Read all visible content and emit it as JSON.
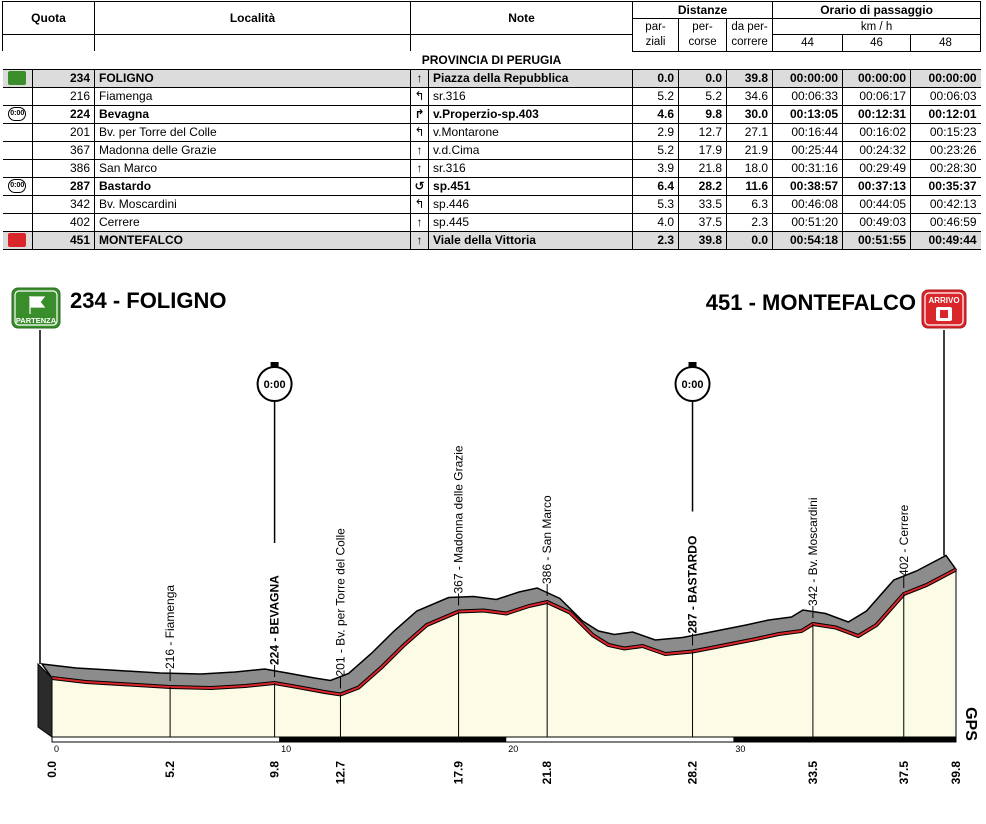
{
  "table": {
    "headers": {
      "quota": "Quota",
      "localita": "Località",
      "note": "Note",
      "distanze": "Distanze",
      "orario": "Orario di passaggio",
      "parziali": "par-\nziali",
      "percorse": "per-\ncorse",
      "da_percorrere": "da per-\ncorrere",
      "kmh": "km / h",
      "speeds": [
        "44",
        "46",
        "48"
      ]
    },
    "province": "PROVINCIA DI PERUGIA",
    "rows": [
      {
        "icon": "start-icon",
        "quota": "234",
        "loc": "FOLIGNO",
        "dir": "↑",
        "note": "Piazza della Repubblica",
        "parz": "0.0",
        "perc": "0.0",
        "da": "39.8",
        "t44": "00:00:00",
        "t46": "00:00:00",
        "t48": "00:00:00",
        "style": "hl"
      },
      {
        "icon": "",
        "quota": "216",
        "loc": "Fiamenga",
        "dir": "↰",
        "note": "sr.316",
        "parz": "5.2",
        "perc": "5.2",
        "da": "34.6",
        "t44": "00:06:33",
        "t46": "00:06:17",
        "t48": "00:06:03",
        "style": ""
      },
      {
        "icon": "clock-icon",
        "quota": "224",
        "loc": "Bevagna",
        "dir": "↱",
        "note": "v.Properzio-sp.403",
        "parz": "4.6",
        "perc": "9.8",
        "da": "30.0",
        "t44": "00:13:05",
        "t46": "00:12:31",
        "t48": "00:12:01",
        "style": "bold"
      },
      {
        "icon": "",
        "quota": "201",
        "loc": "Bv. per Torre del Colle",
        "dir": "↰",
        "note": "v.Montarone",
        "parz": "2.9",
        "perc": "12.7",
        "da": "27.1",
        "t44": "00:16:44",
        "t46": "00:16:02",
        "t48": "00:15:23",
        "style": ""
      },
      {
        "icon": "",
        "quota": "367",
        "loc": "Madonna delle Grazie",
        "dir": "↑",
        "note": "v.d.Cima",
        "parz": "5.2",
        "perc": "17.9",
        "da": "21.9",
        "t44": "00:25:44",
        "t46": "00:24:32",
        "t48": "00:23:26",
        "style": ""
      },
      {
        "icon": "",
        "quota": "386",
        "loc": "San Marco",
        "dir": "↑",
        "note": "sr.316",
        "parz": "3.9",
        "perc": "21.8",
        "da": "18.0",
        "t44": "00:31:16",
        "t46": "00:29:49",
        "t48": "00:28:30",
        "style": ""
      },
      {
        "icon": "clock-icon",
        "quota": "287",
        "loc": "Bastardo",
        "dir": "↺",
        "note": "sp.451",
        "parz": "6.4",
        "perc": "28.2",
        "da": "11.6",
        "t44": "00:38:57",
        "t46": "00:37:13",
        "t48": "00:35:37",
        "style": "bold"
      },
      {
        "icon": "",
        "quota": "342",
        "loc": "Bv. Moscardini",
        "dir": "↰",
        "note": "sp.446",
        "parz": "5.3",
        "perc": "33.5",
        "da": "6.3",
        "t44": "00:46:08",
        "t46": "00:44:05",
        "t48": "00:42:13",
        "style": ""
      },
      {
        "icon": "",
        "quota": "402",
        "loc": "Cerrere",
        "dir": "↑",
        "note": "sp.445",
        "parz": "4.0",
        "perc": "37.5",
        "da": "2.3",
        "t44": "00:51:20",
        "t46": "00:49:03",
        "t48": "00:46:59",
        "style": ""
      },
      {
        "icon": "finish-icon",
        "quota": "451",
        "loc": "MONTEFALCO",
        "dir": "↑",
        "note": "Viale della Vittoria",
        "parz": "2.3",
        "perc": "39.8",
        "da": "0.0",
        "t44": "00:54:18",
        "t46": "00:51:55",
        "t48": "00:49:44",
        "style": "hl"
      }
    ]
  },
  "profile": {
    "start_title": "234 - FOLIGNO",
    "finish_title": "451 - MONTEFALCO",
    "start_badge": "PARTENZA",
    "finish_badge": "ARRIVO",
    "clock_text": "0:00",
    "side_text": "GPS",
    "colors": {
      "start": "#3a8d2b",
      "finish": "#d9262b",
      "road": "#d9262b",
      "fill": "#fbfbe6",
      "band": "#8c8c8c"
    }
  },
  "chart_data": {
    "type": "area",
    "title": "",
    "xlabel": "",
    "ylabel": "",
    "xlim": [
      0,
      39.8
    ],
    "x_ticks": [
      0,
      10,
      20,
      30
    ],
    "bottom_labels": [
      "0.0",
      "5.2",
      "9.8",
      "12.7",
      "17.9",
      "21.8",
      "28.2",
      "33.5",
      "37.5",
      "39.8"
    ],
    "points": [
      {
        "km": 0.0,
        "label": "",
        "bold": true
      },
      {
        "km": 5.2,
        "label": "216 - Fiamenga",
        "bold": false
      },
      {
        "km": 9.8,
        "label": "224 - BEVAGNA",
        "bold": true,
        "clock": true
      },
      {
        "km": 12.7,
        "label": "201 - Bv. per Torre del Colle",
        "bold": false
      },
      {
        "km": 17.9,
        "label": "367 - Madonna delle Grazie",
        "bold": false
      },
      {
        "km": 21.8,
        "label": "386 - San Marco",
        "bold": false
      },
      {
        "km": 28.2,
        "label": "287 - BASTARDO",
        "bold": true,
        "clock": true
      },
      {
        "km": 33.5,
        "label": "342 - Bv. Moscardini",
        "bold": false
      },
      {
        "km": 37.5,
        "label": "402 - Cerrere",
        "bold": false
      },
      {
        "km": 39.8,
        "label": "",
        "bold": true
      }
    ],
    "profile": [
      [
        0,
        234
      ],
      [
        1.5,
        226
      ],
      [
        3,
        222
      ],
      [
        5.2,
        216
      ],
      [
        7,
        214
      ],
      [
        8.5,
        218
      ],
      [
        9.8,
        224
      ],
      [
        10.8,
        216
      ],
      [
        12,
        206
      ],
      [
        12.7,
        201
      ],
      [
        13.5,
        215
      ],
      [
        14.5,
        255
      ],
      [
        15.5,
        300
      ],
      [
        16.5,
        340
      ],
      [
        17.9,
        367
      ],
      [
        19,
        369
      ],
      [
        20,
        363
      ],
      [
        21,
        378
      ],
      [
        21.8,
        386
      ],
      [
        22.8,
        365
      ],
      [
        23.8,
        320
      ],
      [
        24.5,
        300
      ],
      [
        25.2,
        293
      ],
      [
        26,
        298
      ],
      [
        27,
        282
      ],
      [
        28.2,
        287
      ],
      [
        29,
        294
      ],
      [
        30,
        303
      ],
      [
        31,
        312
      ],
      [
        32,
        322
      ],
      [
        33,
        328
      ],
      [
        33.5,
        342
      ],
      [
        34.5,
        335
      ],
      [
        35.5,
        318
      ],
      [
        36.3,
        340
      ],
      [
        37.5,
        402
      ],
      [
        38.5,
        420
      ],
      [
        39.8,
        451
      ]
    ]
  }
}
